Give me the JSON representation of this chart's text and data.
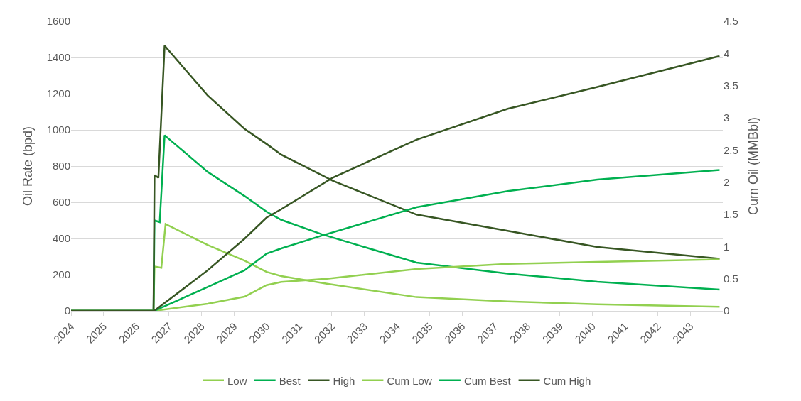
{
  "chart_data": {
    "type": "line",
    "ylabel": "Oil Rate (bpd)",
    "y2label": "Cum Oil (MMBbl)",
    "xlim": [
      2024,
      2044
    ],
    "xticks": [
      2024,
      2025,
      2026,
      2027,
      2028,
      2029,
      2030,
      2031,
      2032,
      2033,
      2034,
      2035,
      2036,
      2037,
      2038,
      2039,
      2040,
      2041,
      2042,
      2043
    ],
    "ylim": [
      0,
      1600
    ],
    "yticks": [
      0,
      200,
      400,
      600,
      800,
      1000,
      1200,
      1400,
      1600
    ],
    "y2lim": [
      0,
      4.5
    ],
    "y2ticks": [
      0,
      0.5,
      1,
      1.5,
      2,
      2.5,
      3,
      3.5,
      4,
      4.5
    ],
    "grid": "y",
    "legend": "bottom",
    "marker": "none",
    "line_style": "solid",
    "series": [
      {
        "name": "Low",
        "color": "#92d050",
        "x": [
          2024,
          2026.53,
          2026.56,
          2026.77,
          2026.9,
          2028.19,
          2029.32,
          2030.0,
          2030.45,
          2031.85,
          2034.6,
          2037.4,
          2040.15,
          2043.9
        ],
        "values": [
          0,
          0,
          245,
          238,
          480,
          364,
          278,
          215,
          192,
          150,
          76,
          52,
          36,
          23
        ]
      },
      {
        "name": "Best",
        "color": "#00b050",
        "x": [
          2024,
          2026.53,
          2026.56,
          2026.72,
          2026.87,
          2028.19,
          2029.32,
          2030.0,
          2030.45,
          2031.7,
          2034.6,
          2037.4,
          2040.15,
          2043.9
        ],
        "values": [
          0,
          0,
          500,
          490,
          970,
          768,
          635,
          548,
          503,
          423,
          267,
          206,
          161,
          118
        ]
      },
      {
        "name": "High",
        "color": "#375623",
        "x": [
          2024,
          2026.53,
          2026.56,
          2026.68,
          2026.87,
          2028.19,
          2029.32,
          2030.0,
          2030.45,
          2032.03,
          2034.6,
          2037.4,
          2040.15,
          2043.9
        ],
        "values": [
          0,
          0,
          750,
          735,
          1465,
          1191,
          1006,
          922,
          863,
          719,
          532,
          442,
          353,
          288
        ]
      },
      {
        "name": "Cum Low",
        "color": "#92d050",
        "axis": "y2",
        "x": [
          2024,
          2026.55,
          2028.19,
          2029.32,
          2030.0,
          2030.45,
          2031.85,
          2034.6,
          2037.4,
          2040.15,
          2043.9
        ],
        "values": [
          0,
          0,
          0.11,
          0.22,
          0.4,
          0.45,
          0.5,
          0.65,
          0.73,
          0.76,
          0.8
        ]
      },
      {
        "name": "Cum Best",
        "color": "#00b050",
        "axis": "y2",
        "x": [
          2024,
          2026.55,
          2028.19,
          2029.32,
          2030.0,
          2030.45,
          2031.7,
          2034.6,
          2037.4,
          2040.15,
          2043.9
        ],
        "values": [
          0,
          0,
          0.37,
          0.63,
          0.89,
          0.97,
          1.17,
          1.61,
          1.86,
          2.04,
          2.19
        ]
      },
      {
        "name": "Cum High",
        "color": "#375623",
        "axis": "y2",
        "x": [
          2024,
          2026.55,
          2028.19,
          2029.32,
          2030.0,
          2030.45,
          2032.03,
          2034.6,
          2037.4,
          2040.15,
          2043.9
        ],
        "values": [
          0,
          0,
          0.63,
          1.12,
          1.45,
          1.58,
          2.07,
          2.66,
          3.14,
          3.48,
          3.96
        ]
      }
    ]
  }
}
